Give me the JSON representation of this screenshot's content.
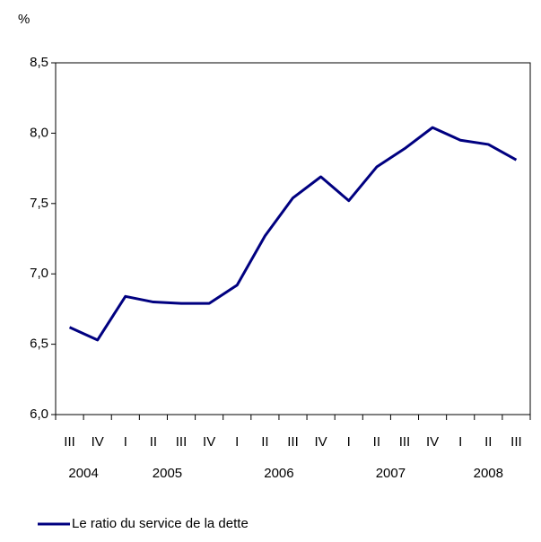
{
  "chart_data": {
    "type": "line",
    "y_unit": "%",
    "categories": [
      "III",
      "IV",
      "I",
      "II",
      "III",
      "IV",
      "I",
      "II",
      "III",
      "IV",
      "I",
      "II",
      "III",
      "IV",
      "I",
      "II",
      "III"
    ],
    "years": [
      "2004",
      "2005",
      "2006",
      "2007",
      "2008"
    ],
    "series": [
      {
        "name": "Le ratio du service de la dette",
        "color": "#000080",
        "values": [
          6.62,
          6.53,
          6.84,
          6.8,
          6.79,
          6.79,
          6.92,
          7.27,
          7.54,
          7.69,
          7.52,
          7.76,
          7.89,
          8.04,
          7.95,
          7.92,
          7.81
        ]
      }
    ],
    "ylim": [
      6.0,
      8.5
    ],
    "yticks": [
      {
        "value": 6.0,
        "label": "6,0"
      },
      {
        "value": 6.5,
        "label": "6,5"
      },
      {
        "value": 7.0,
        "label": "7,0"
      },
      {
        "value": 7.5,
        "label": "7,5"
      },
      {
        "value": 8.0,
        "label": "8,0"
      },
      {
        "value": 8.5,
        "label": "8,5"
      }
    ],
    "grid": false,
    "legend": "bottom-left"
  }
}
